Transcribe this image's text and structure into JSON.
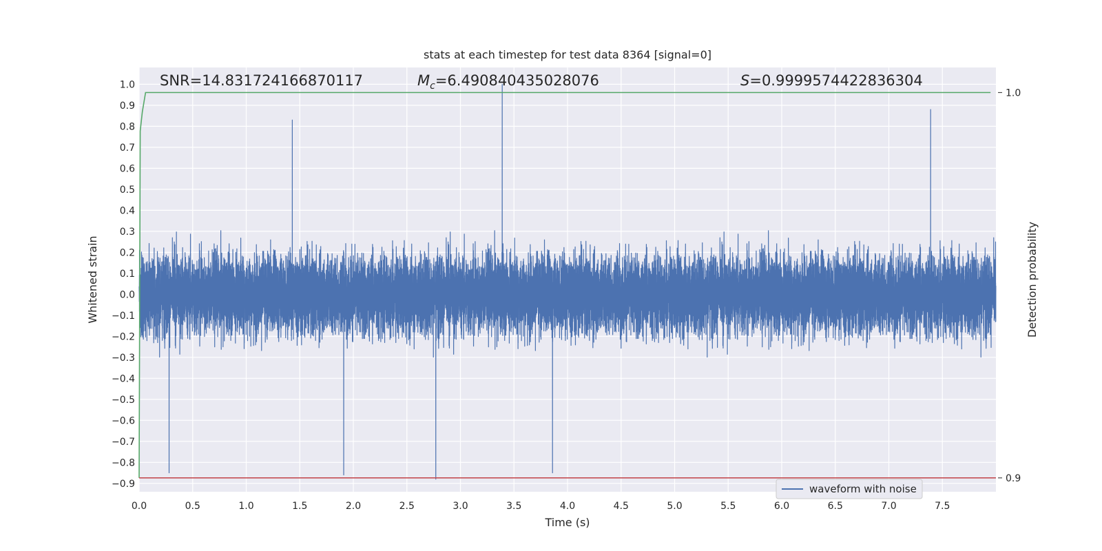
{
  "chart_data": {
    "type": "line",
    "title": "stats at each timestep for test data 8364 [signal=0]",
    "xlabel": "Time (s)",
    "ylabel": "Whitened strain",
    "y2label": "Detection probability",
    "xlim": [
      0,
      8.0
    ],
    "ylim": [
      -0.94,
      1.08
    ],
    "y2lim": [
      0.8964,
      1.0065
    ],
    "xticks": [
      "0.0",
      "0.5",
      "1.0",
      "1.5",
      "2.0",
      "2.5",
      "3.0",
      "3.5",
      "4.0",
      "4.5",
      "5.0",
      "5.5",
      "6.0",
      "6.5",
      "7.0",
      "7.5"
    ],
    "yticks": [
      "1.0",
      "0.9",
      "0.8",
      "0.7",
      "0.6",
      "0.5",
      "0.4",
      "0.3",
      "0.2",
      "0.1",
      "0.0",
      "-0.1",
      "-0.2",
      "-0.3",
      "-0.4",
      "-0.5",
      "-0.6",
      "-0.7",
      "-0.8",
      "-0.9"
    ],
    "y2ticks": [
      "1.0",
      "0.9"
    ],
    "grid": true,
    "legend": {
      "placement": "lower-right",
      "entries": [
        "waveform with noise"
      ]
    },
    "annotations": {
      "snr": "SNR=14.831724166870117",
      "mc_symbol": "M",
      "mc_sub": "c",
      "mc_value": "=6.490840435028076",
      "s_symbol": "S",
      "s_value": "=0.9999574422836304"
    },
    "series": [
      {
        "name": "waveform with noise",
        "color": "#4c72b0",
        "axis": "left",
        "sample_rate_hz": 2048,
        "duration_s": 8.0,
        "amplitude_envelope": [
          -0.88,
          1.0
        ],
        "notable_peaks": [
          {
            "x": 3.39,
            "y": 1.0
          },
          {
            "x": 7.39,
            "y": 0.88
          },
          {
            "x": 1.43,
            "y": 0.83
          },
          {
            "x": 2.77,
            "y": -0.88
          },
          {
            "x": 1.91,
            "y": -0.86
          },
          {
            "x": 3.86,
            "y": -0.85
          },
          {
            "x": 0.28,
            "y": -0.85
          }
        ]
      },
      {
        "name": "",
        "color": "#55a868",
        "axis": "right",
        "x": [
          0.0,
          0.01,
          0.03,
          0.06,
          7.95
        ],
        "y": [
          0.9,
          0.99,
          0.995,
          1.0,
          1.0
        ]
      },
      {
        "name": "",
        "color": "#c44e52",
        "axis": "right",
        "x": [
          0.0,
          8.0
        ],
        "y": [
          0.9,
          0.9
        ]
      }
    ]
  }
}
